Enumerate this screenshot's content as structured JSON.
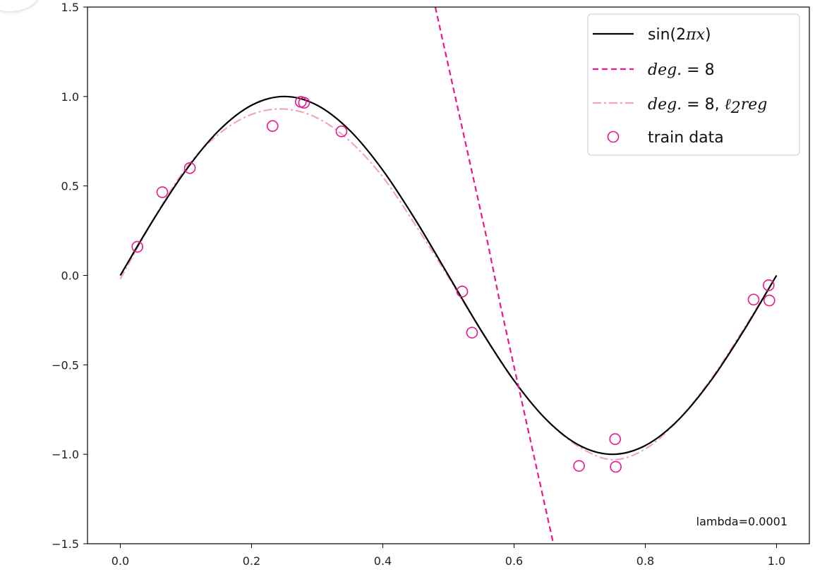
{
  "chart_data": {
    "type": "line",
    "title": "",
    "xlabel": "",
    "ylabel": "",
    "xlim": [
      -0.05,
      1.05
    ],
    "ylim": [
      -1.5,
      1.5
    ],
    "xticks": [
      0.0,
      0.2,
      0.4,
      0.6,
      0.8,
      1.0
    ],
    "xtick_labels": [
      "0.0",
      "0.2",
      "0.4",
      "0.6",
      "0.8",
      "1.0"
    ],
    "yticks": [
      -1.5,
      -1.0,
      -0.5,
      0.0,
      0.5,
      1.0,
      1.5
    ],
    "ytick_labels": [
      "−1.5",
      "−1.0",
      "−0.5",
      "0.0",
      "0.5",
      "1.0",
      "1.5"
    ],
    "grid": false,
    "legend_position": "top-right",
    "series": [
      {
        "name": "sin(2πx)",
        "style": "solid",
        "color": "#000000",
        "x": [
          0.0,
          0.05,
          0.1,
          0.15,
          0.2,
          0.25,
          0.3,
          0.35,
          0.4,
          0.45,
          0.5,
          0.55,
          0.6,
          0.65,
          0.7,
          0.75,
          0.8,
          0.85,
          0.9,
          0.95,
          1.0
        ],
        "y": [
          0.0,
          0.309,
          0.588,
          0.809,
          0.951,
          1.0,
          0.951,
          0.809,
          0.588,
          0.309,
          0.0,
          -0.309,
          -0.588,
          -0.809,
          -0.951,
          -1.0,
          -0.951,
          -0.809,
          -0.588,
          -0.309,
          0.0
        ]
      },
      {
        "name": "deg. = 8",
        "style": "dashed",
        "color": "#e8178a",
        "x": [
          0.48,
          0.5,
          0.52,
          0.54,
          0.56,
          0.58,
          0.6,
          0.62,
          0.64,
          0.66
        ],
        "y": [
          1.5,
          1.17,
          0.84,
          0.51,
          0.18,
          -0.18,
          -0.51,
          -0.84,
          -1.17,
          -1.5
        ]
      },
      {
        "name": "deg. = 8, ℓ₂reg",
        "style": "dashdot",
        "color": "#f2a3c6",
        "x": [
          0.0,
          0.05,
          0.1,
          0.15,
          0.2,
          0.25,
          0.3,
          0.35,
          0.4,
          0.45,
          0.5,
          0.55,
          0.6,
          0.65,
          0.7,
          0.75,
          0.8,
          0.85,
          0.9,
          0.95,
          1.0
        ],
        "y": [
          -0.02,
          0.31,
          0.6,
          0.79,
          0.9,
          0.93,
          0.88,
          0.75,
          0.55,
          0.28,
          -0.01,
          -0.31,
          -0.59,
          -0.81,
          -0.96,
          -1.03,
          -0.97,
          -0.81,
          -0.58,
          -0.3,
          0.0
        ]
      }
    ],
    "scatter": {
      "name": "train data",
      "color": "#e8178a",
      "x": [
        0.026,
        0.064,
        0.106,
        0.232,
        0.275,
        0.28,
        0.337,
        0.521,
        0.536,
        0.699,
        0.754,
        0.755,
        0.965,
        0.988,
        0.989
      ],
      "y": [
        0.16,
        0.465,
        0.6,
        0.835,
        0.97,
        0.965,
        0.805,
        -0.09,
        -0.32,
        -1.065,
        -0.915,
        -1.07,
        -0.135,
        -0.055,
        -0.14
      ]
    },
    "legend": {
      "sin_prefix": "sin(2",
      "sin_math": "πx",
      "sin_suffix": ")",
      "deg8_math": "deg.",
      "deg8_rest": " = 8",
      "l2_math": "deg.",
      "l2_rest": " = 8, ",
      "l2_ell": "ℓ",
      "l2_sub": "2",
      "l2_reg": "reg",
      "train_label": "train data"
    },
    "annotation": "lambda=0.0001"
  }
}
